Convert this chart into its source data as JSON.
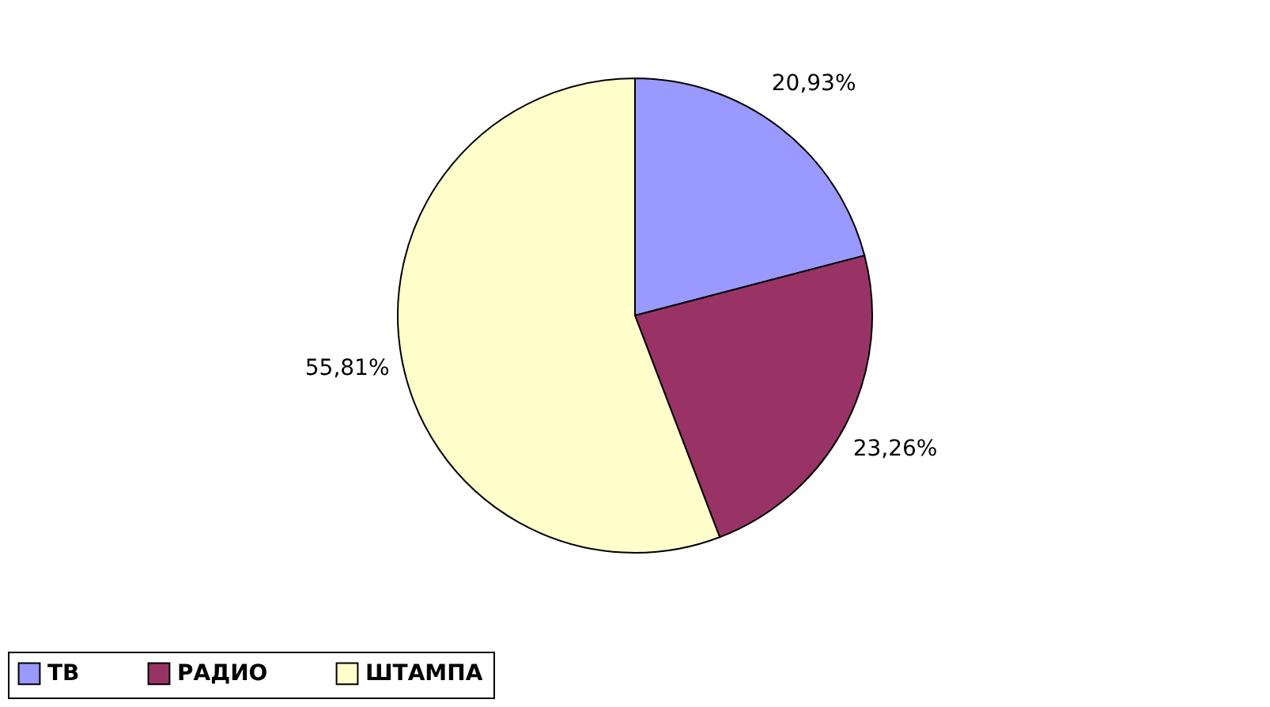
{
  "chart_data": {
    "type": "pie",
    "categories": [
      "ТВ",
      "РАДИО",
      "ШТАМПА"
    ],
    "values": [
      20.93,
      23.26,
      55.81
    ],
    "colors": [
      "#9999ff",
      "#993366",
      "#ffffcc"
    ],
    "value_labels": [
      "20,93%",
      "23,26%",
      "55,81%"
    ],
    "legend": "bottom"
  }
}
